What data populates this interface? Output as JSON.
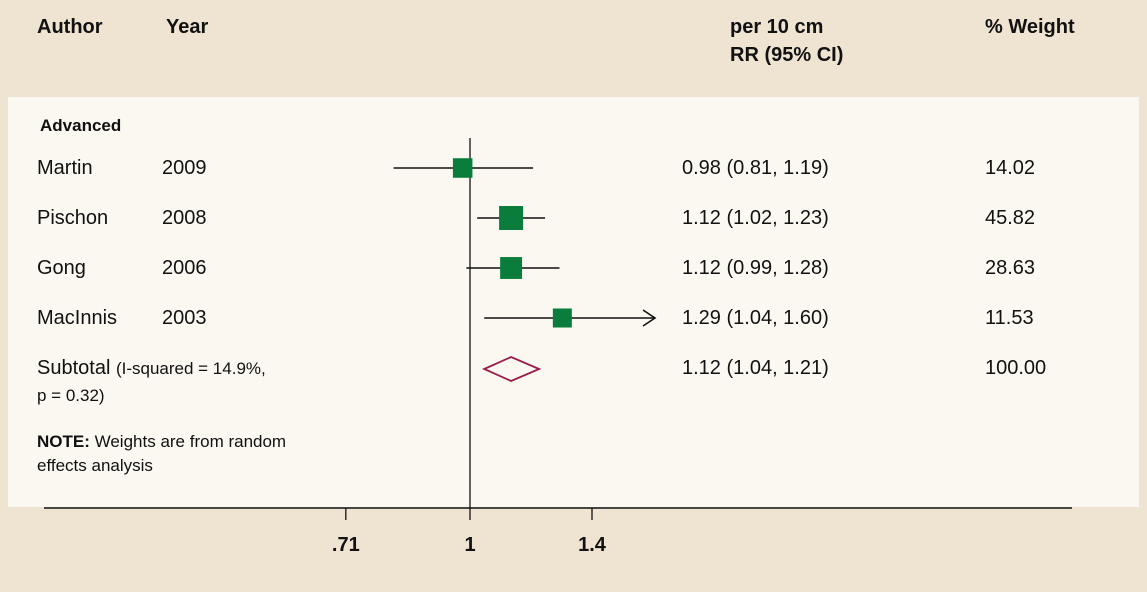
{
  "header": {
    "author": "Author",
    "year": "Year",
    "effect_line1": "per 10 cm",
    "effect_line2": "RR (95% CI)",
    "weight": "% Weight"
  },
  "section_label": "Advanced",
  "subtotal": {
    "label": "Subtotal",
    "stats_line1": "(I-squared = 14.9%,",
    "stats_line2": "p = 0.32)",
    "ci_text": "1.12 (1.04, 1.21)",
    "weight": "100.00"
  },
  "note": {
    "prefix": "NOTE:",
    "line1": " Weights are from random",
    "line2": "effects analysis"
  },
  "colors": {
    "page_background": "#efe4d2",
    "panel_background": "#fbf8f1",
    "marker": "#0a7d3c",
    "diamond": "#9a1c4b",
    "line": "#111111"
  },
  "chart_data": {
    "type": "forest",
    "x_scale": "log",
    "xlim": [
      0.5,
      2.4
    ],
    "x_ticks": [
      0.71,
      1,
      1.4
    ],
    "x_tick_labels": [
      ".71",
      "1",
      "1.4"
    ],
    "reference_line": 1,
    "studies": [
      {
        "author": "Martin",
        "year": "2009",
        "rr": 0.98,
        "lo": 0.81,
        "hi": 1.19,
        "ci_text": "0.98 (0.81, 1.19)",
        "weight": 14.02,
        "weight_text": "14.02"
      },
      {
        "author": "Pischon",
        "year": "2008",
        "rr": 1.12,
        "lo": 1.02,
        "hi": 1.23,
        "ci_text": "1.12 (1.02, 1.23)",
        "weight": 45.82,
        "weight_text": "45.82"
      },
      {
        "author": "Gong",
        "year": "2006",
        "rr": 1.12,
        "lo": 0.99,
        "hi": 1.28,
        "ci_text": "1.12 (0.99, 1.28)",
        "weight": 28.63,
        "weight_text": "28.63"
      },
      {
        "author": "MacInnis",
        "year": "2003",
        "rr": 1.29,
        "lo": 1.04,
        "hi": 1.6,
        "ci_text": "1.29 (1.04, 1.60)",
        "weight": 11.53,
        "weight_text": "11.53",
        "ci_truncated": true
      }
    ],
    "pooled": {
      "rr": 1.12,
      "lo": 1.04,
      "hi": 1.21
    }
  }
}
